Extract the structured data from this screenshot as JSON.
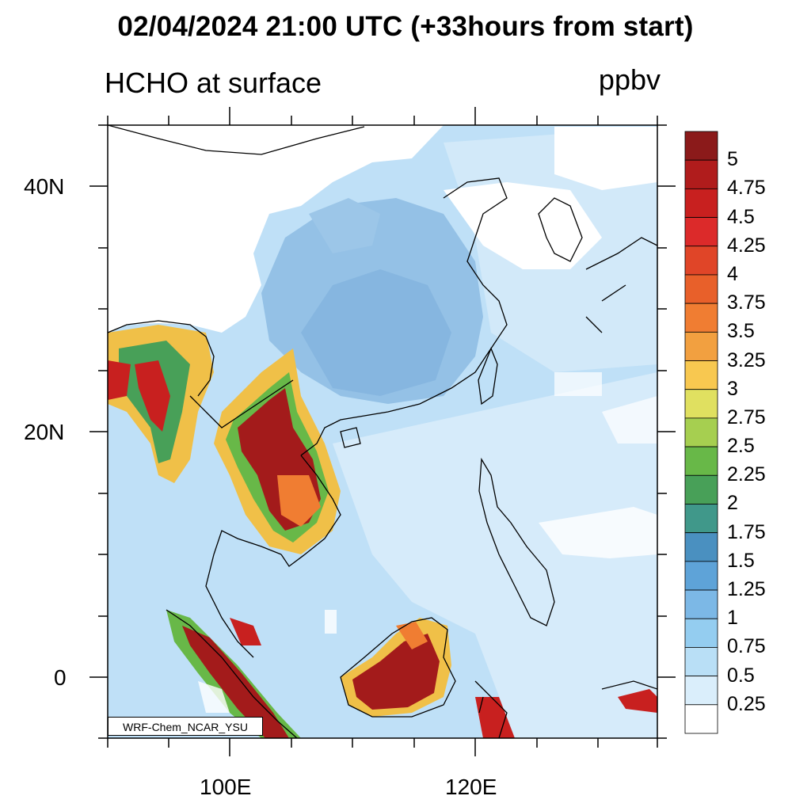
{
  "header": {
    "title": "02/04/2024 21:00 UTC (+33hours from start)",
    "subtitle": "HCHO at surface",
    "units": "ppbv"
  },
  "axes": {
    "lat_labels": [
      "40N",
      "20N",
      "0"
    ],
    "lon_labels": [
      "100E",
      "120E"
    ]
  },
  "colorbar": {
    "levels": [
      "5",
      "4.75",
      "4.5",
      "4.25",
      "4",
      "3.75",
      "3.5",
      "3.25",
      "3",
      "2.75",
      "2.5",
      "2.25",
      "2",
      "1.75",
      "1.5",
      "1.25",
      "1",
      "0.75",
      "0.5",
      "0.25"
    ],
    "colors": [
      "#8b1a1a",
      "#b01c1c",
      "#c8201f",
      "#dc2a2a",
      "#e04528",
      "#e8602a",
      "#f07d32",
      "#f2a040",
      "#f8c850",
      "#e0e060",
      "#a6cf50",
      "#68b848",
      "#48a058",
      "#40988a",
      "#4a90c0",
      "#5ea3d8",
      "#7cb8e6",
      "#94cdf0",
      "#b9dff6",
      "#daeefb",
      "#ffffff"
    ]
  },
  "credit": "WRF-Chem_NCAR_YSU"
}
